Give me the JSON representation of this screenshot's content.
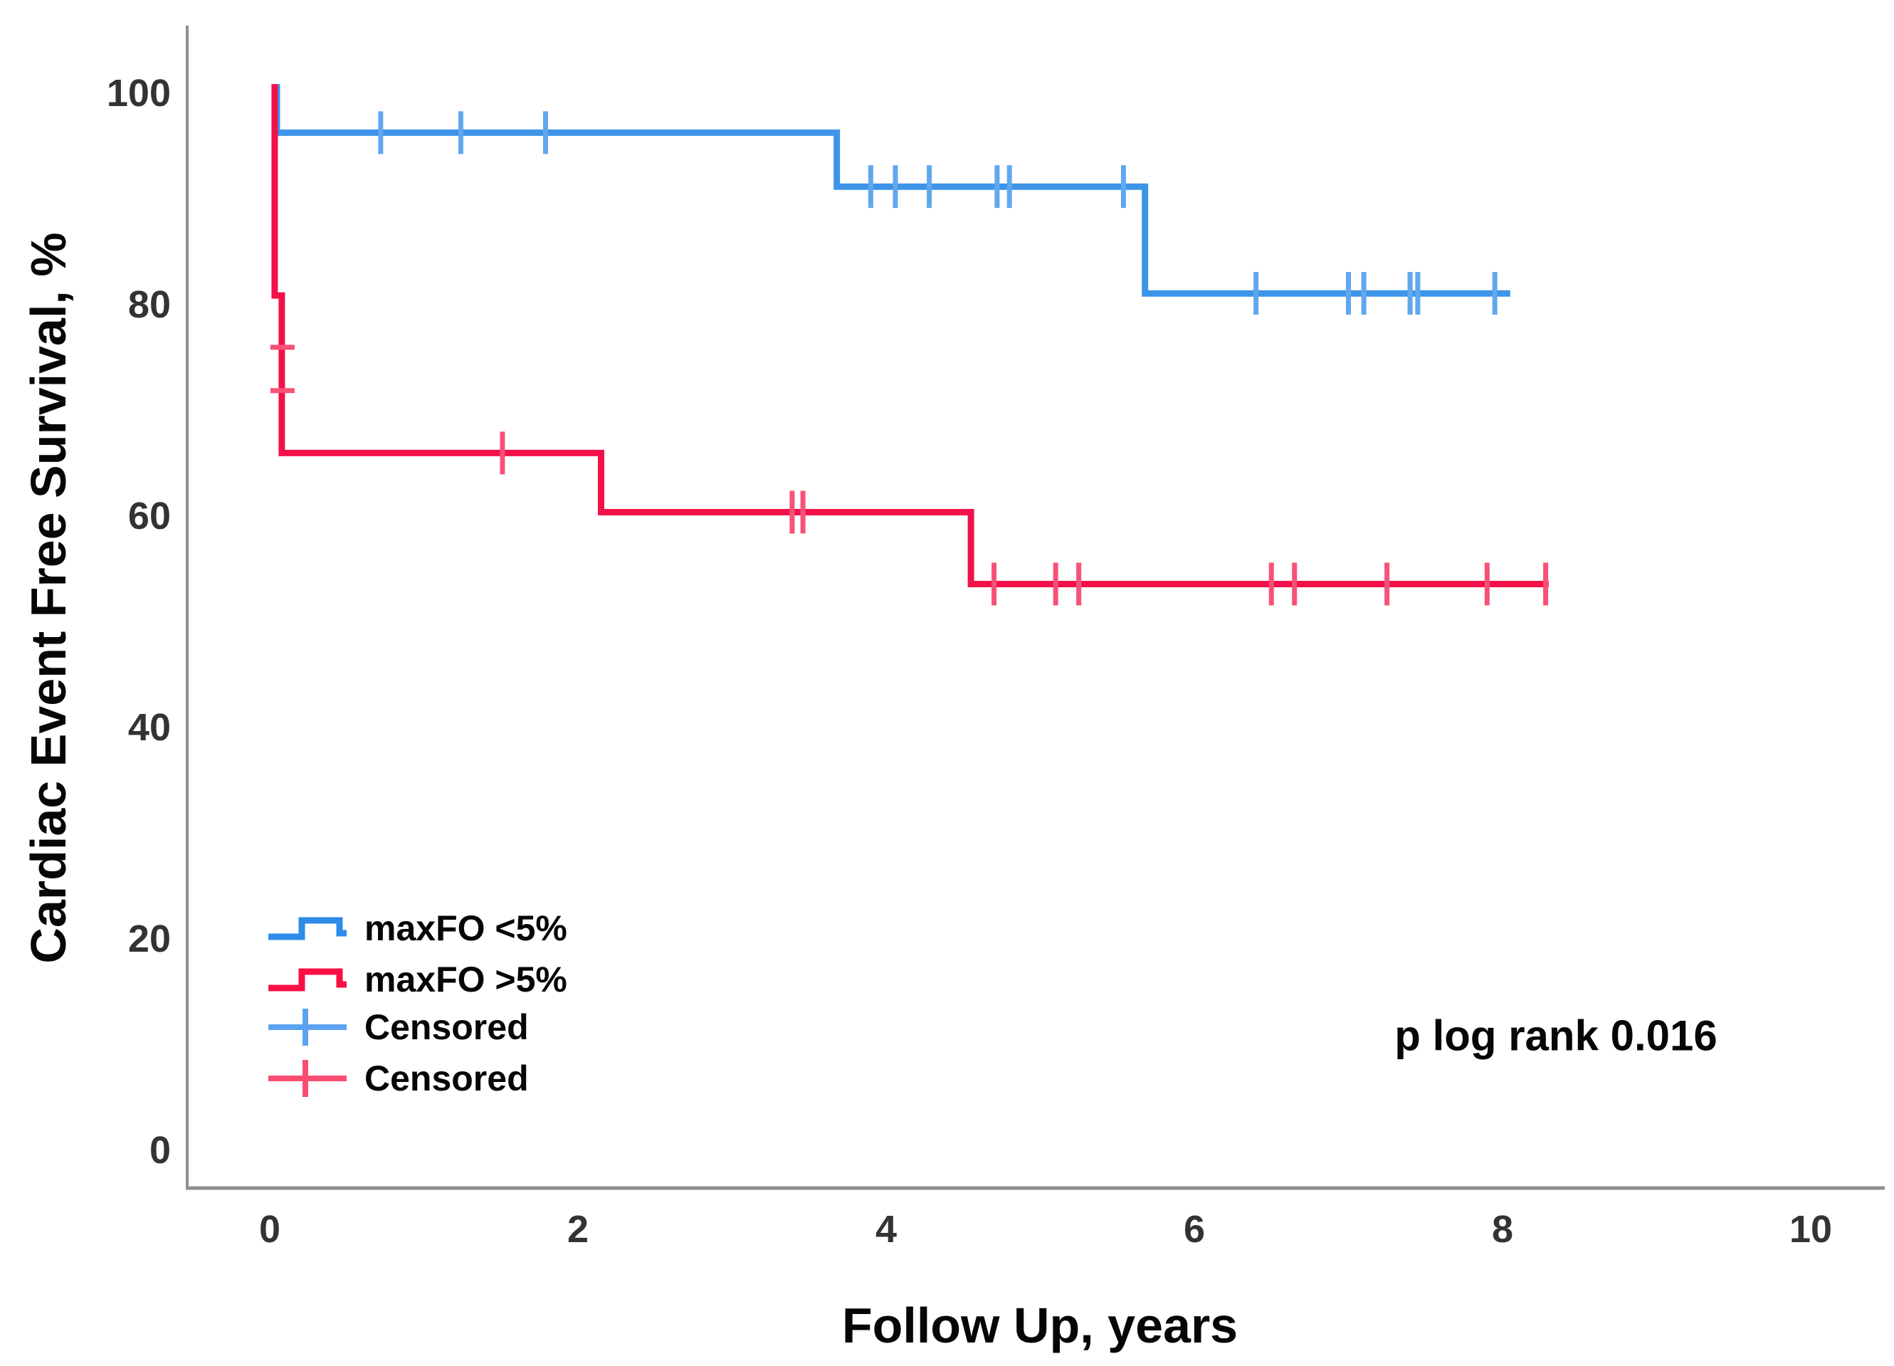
{
  "figure": {
    "background": "#ffffff",
    "axis_color": "#8f8f8f",
    "tick_label_color": "#333333",
    "text_color": "#060606"
  },
  "chart_data": {
    "type": "line",
    "subtype": "kaplan-meier-step",
    "title": "",
    "xlabel": "Follow Up, years",
    "ylabel": "Cardiac Event Free Survival, %",
    "annotation": "p log rank 0.016",
    "xlim": [
      0,
      10.5
    ],
    "ylim": [
      0,
      103
    ],
    "xticks": [
      0,
      2,
      4,
      6,
      8,
      10
    ],
    "yticks": [
      0,
      20,
      40,
      60,
      80,
      100
    ],
    "grid": false,
    "legend_position": "inside-lower-left",
    "series": [
      {
        "name": "maxFO <5%",
        "color": "#3d94e9",
        "censor_color": "#5fa8ee",
        "steps": [
          [
            0.046,
            100.8
          ],
          [
            0.046,
            96.2
          ],
          [
            3.68,
            96.2
          ],
          [
            3.68,
            91.1
          ],
          [
            5.68,
            91.1
          ],
          [
            5.68,
            81.0
          ],
          [
            8.05,
            81.0
          ]
        ],
        "censors": [
          [
            0.72,
            96.2
          ],
          [
            1.24,
            96.2
          ],
          [
            1.79,
            96.2
          ],
          [
            3.9,
            91.1
          ],
          [
            4.06,
            91.1
          ],
          [
            4.28,
            91.1
          ],
          [
            4.72,
            91.1
          ],
          [
            4.8,
            91.1
          ],
          [
            5.54,
            91.1
          ],
          [
            6.4,
            81.0
          ],
          [
            7.0,
            81.0
          ],
          [
            7.1,
            81.0
          ],
          [
            7.4,
            81.0
          ],
          [
            7.45,
            81.0
          ],
          [
            7.95,
            81.0
          ]
        ]
      },
      {
        "name": "maxFO >5%",
        "color": "#f3114a",
        "censor_color": "#f85177",
        "steps": [
          [
            0.032,
            100.8
          ],
          [
            0.032,
            80.8
          ],
          [
            0.078,
            80.8
          ],
          [
            0.078,
            65.9
          ],
          [
            2.15,
            65.9
          ],
          [
            2.15,
            60.3
          ],
          [
            4.55,
            60.3
          ],
          [
            4.55,
            53.5
          ],
          [
            8.3,
            53.5
          ]
        ],
        "censors": [
          [
            0.078,
            75.9,
            "h"
          ],
          [
            0.078,
            71.8,
            "h"
          ],
          [
            1.51,
            65.9
          ],
          [
            3.39,
            60.3
          ],
          [
            3.46,
            60.3
          ],
          [
            4.7,
            53.5
          ],
          [
            5.1,
            53.5
          ],
          [
            5.25,
            53.5
          ],
          [
            6.5,
            53.5
          ],
          [
            6.65,
            53.5
          ],
          [
            7.25,
            53.5
          ],
          [
            7.9,
            53.5
          ],
          [
            8.28,
            53.5
          ]
        ]
      }
    ],
    "legend": [
      {
        "label": "maxFO <5%",
        "marker": "step",
        "color": "#2e8be8"
      },
      {
        "label": "maxFO >5%",
        "marker": "step",
        "color": "#fa0f45"
      },
      {
        "label": "Censored",
        "marker": "plus",
        "color": "#5ba3f0"
      },
      {
        "label": "Censored",
        "marker": "plus",
        "color": "#fb4d72"
      }
    ]
  }
}
